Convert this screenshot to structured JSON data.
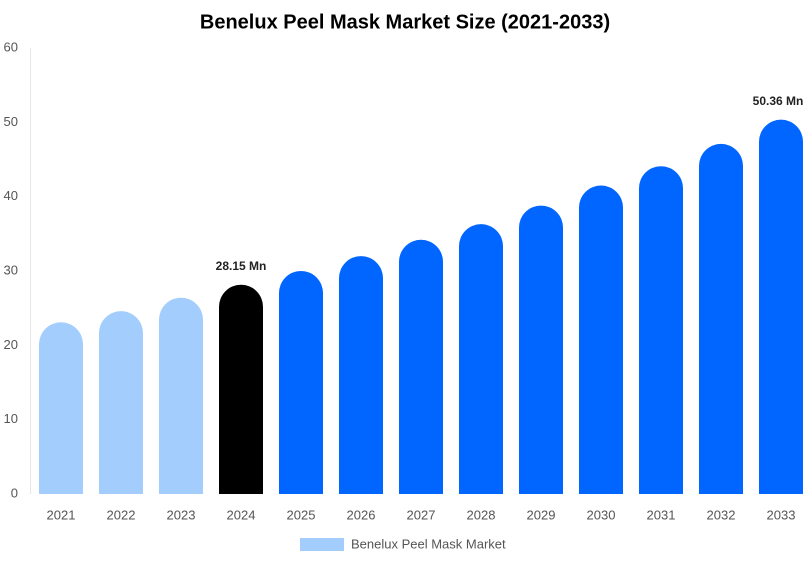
{
  "chart_data": {
    "type": "bar",
    "title": "Benelux Peel Mask Market Size (2021-2033)",
    "categories": [
      "2021",
      "2022",
      "2023",
      "2024",
      "2025",
      "2026",
      "2027",
      "2028",
      "2029",
      "2030",
      "2031",
      "2032",
      "2033"
    ],
    "series": [
      {
        "name": "Benelux Peel Mask Market",
        "color": "#a3cdfc",
        "values": [
          23.1,
          24.6,
          26.4,
          28.15,
          30.0,
          32.0,
          34.2,
          36.3,
          38.8,
          41.5,
          44.1,
          47.1,
          50.36
        ],
        "value_labels": [
          null,
          null,
          null,
          "28.15 Mn",
          null,
          null,
          null,
          null,
          null,
          null,
          null,
          null,
          "50.36 Mn"
        ],
        "bar_colors": [
          "#a3cdfc",
          "#a3cdfc",
          "#a3cdfc",
          "#000000",
          "#0066ff",
          "#0066ff",
          "#0066ff",
          "#0066ff",
          "#0066ff",
          "#0066ff",
          "#0066ff",
          "#0066ff",
          "#0066ff"
        ]
      }
    ],
    "ylim": [
      0,
      60
    ],
    "yticks": [
      0,
      10,
      20,
      30,
      40,
      50,
      60
    ],
    "grid": false,
    "legend": "bottom"
  }
}
